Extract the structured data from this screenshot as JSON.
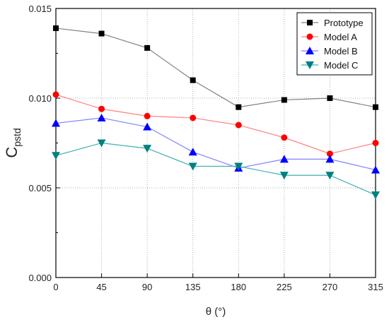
{
  "chart_data": {
    "type": "line",
    "title": "",
    "xlabel": "θ (°)",
    "ylabel": "C",
    "ylabel_subscript": "pstd",
    "x": [
      0,
      45,
      90,
      135,
      180,
      225,
      270,
      315
    ],
    "x_ticks": [
      "0",
      "45",
      "90",
      "135",
      "180",
      "225",
      "270",
      "315"
    ],
    "xlim": [
      0,
      315
    ],
    "ylim": [
      0.0,
      0.015
    ],
    "y_ticks": [
      "0.000",
      "0.005",
      "0.010",
      "0.015"
    ],
    "y_tick_values": [
      0.0,
      0.005,
      0.01,
      0.015
    ],
    "grid": true,
    "legend_position": "top-right",
    "series": [
      {
        "name": "Prototype",
        "color": "#808080",
        "marker_color": "#000000",
        "marker": "square",
        "values": [
          0.0139,
          0.0136,
          0.0128,
          0.011,
          0.0095,
          0.0099,
          0.01,
          0.0095
        ]
      },
      {
        "name": "Model A",
        "color": "#ff8080",
        "marker_color": "#ff0000",
        "marker": "circle",
        "values": [
          0.0102,
          0.0094,
          0.009,
          0.0089,
          0.0085,
          0.0078,
          0.0069,
          0.0075
        ]
      },
      {
        "name": "Model B",
        "color": "#8080ff",
        "marker_color": "#0000ff",
        "marker": "triangle-up",
        "values": [
          0.0086,
          0.0089,
          0.0084,
          0.007,
          0.0061,
          0.0066,
          0.0066,
          0.006
        ]
      },
      {
        "name": "Model C",
        "color": "#40b0b0",
        "marker_color": "#008080",
        "marker": "triangle-down",
        "values": [
          0.0068,
          0.0075,
          0.0072,
          0.0062,
          0.0062,
          0.0057,
          0.0057,
          0.0046
        ]
      }
    ]
  }
}
